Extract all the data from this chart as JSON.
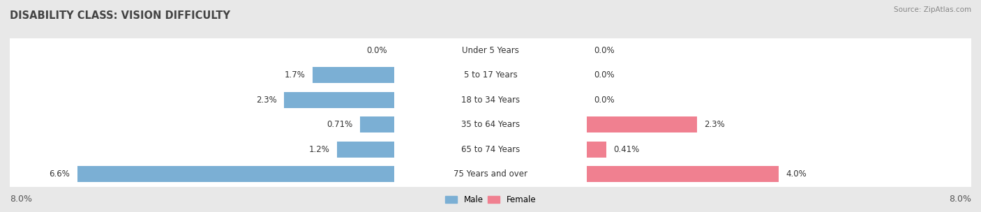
{
  "title": "DISABILITY CLASS: VISION DIFFICULTY",
  "source": "Source: ZipAtlas.com",
  "categories": [
    "Under 5 Years",
    "5 to 17 Years",
    "18 to 34 Years",
    "35 to 64 Years",
    "65 to 74 Years",
    "75 Years and over"
  ],
  "male_values": [
    0.0,
    1.7,
    2.3,
    0.71,
    1.2,
    6.6
  ],
  "female_values": [
    0.0,
    0.0,
    0.0,
    2.3,
    0.41,
    4.0
  ],
  "male_label_values": [
    "0.0%",
    "1.7%",
    "2.3%",
    "0.71%",
    "1.2%",
    "6.6%"
  ],
  "female_label_values": [
    "0.0%",
    "0.0%",
    "0.0%",
    "2.3%",
    "0.41%",
    "4.0%"
  ],
  "male_color": "#7bafd4",
  "female_color": "#f08090",
  "male_label": "Male",
  "female_label": "Female",
  "x_max": 8.0,
  "row_bg_color": "#e8e8e8",
  "outer_bg_color": "#dcdcdc",
  "title_color": "#444444",
  "title_fontsize": 10.5,
  "label_fontsize": 8.5,
  "value_fontsize": 8.5,
  "axis_label_fontsize": 9
}
